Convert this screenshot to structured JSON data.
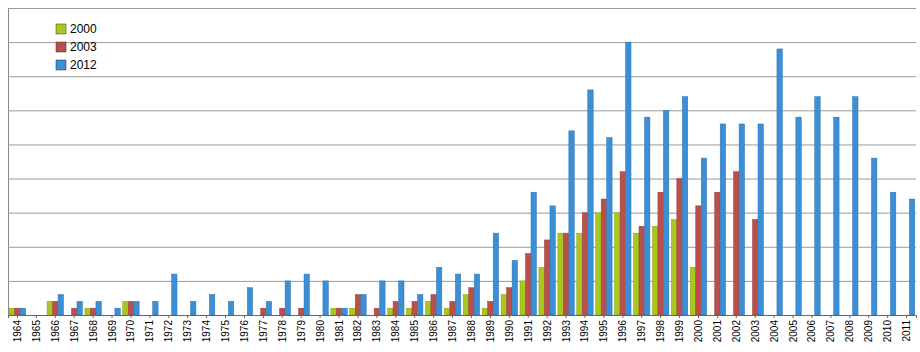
{
  "chart_data": {
    "type": "bar",
    "categories": [
      "1964",
      "1965",
      "1966",
      "1967",
      "1968",
      "1969",
      "1970",
      "1971",
      "1972",
      "1973",
      "1974",
      "1975",
      "1976",
      "1977",
      "1978",
      "1979",
      "1980",
      "1981",
      "1982",
      "1983",
      "1984",
      "1985",
      "1986",
      "1987",
      "1988",
      "1989",
      "1990",
      "1991",
      "1992",
      "1993",
      "1994",
      "1995",
      "1996",
      "1997",
      "1998",
      "1999",
      "2000",
      "2001",
      "2002",
      "2003",
      "2004",
      "2005",
      "2006",
      "2007",
      "2008",
      "2009",
      "2010",
      "2011"
    ],
    "series": [
      {
        "name": "2000",
        "color": "#a9c81f",
        "values": [
          2,
          0,
          4,
          0,
          2,
          0,
          4,
          0,
          0,
          0,
          0,
          0,
          0,
          0,
          0,
          0,
          0,
          2,
          2,
          0,
          2,
          2,
          4,
          2,
          6,
          2,
          6,
          10,
          14,
          24,
          24,
          30,
          30,
          24,
          26,
          28,
          14,
          null,
          null,
          null,
          null,
          null,
          null,
          null,
          null,
          null,
          null,
          null
        ]
      },
      {
        "name": "2003",
        "color": "#b9504c",
        "values": [
          2,
          0,
          4,
          2,
          2,
          0,
          4,
          0,
          0,
          0,
          0,
          0,
          0,
          2,
          2,
          2,
          0,
          2,
          6,
          2,
          4,
          4,
          6,
          4,
          8,
          4,
          8,
          18,
          22,
          24,
          30,
          34,
          42,
          26,
          36,
          40,
          32,
          36,
          42,
          28,
          null,
          null,
          null,
          null,
          null,
          null,
          null,
          null
        ]
      },
      {
        "name": "2012",
        "color": "#3a8fd6",
        "values": [
          2,
          0,
          6,
          4,
          4,
          2,
          4,
          4,
          12,
          4,
          6,
          4,
          8,
          4,
          10,
          12,
          10,
          2,
          6,
          10,
          10,
          6,
          14,
          12,
          12,
          24,
          16,
          36,
          32,
          54,
          66,
          52,
          80,
          58,
          60,
          64,
          46,
          56,
          56,
          56,
          78,
          58,
          64,
          58,
          64,
          46,
          36,
          34
        ]
      }
    ],
    "ylim": [
      0,
      90
    ],
    "yticks": [
      0,
      10,
      20,
      30,
      40,
      50,
      60,
      70,
      80,
      90
    ],
    "grid": true,
    "legend": "top-left",
    "tick_labels": "x"
  }
}
